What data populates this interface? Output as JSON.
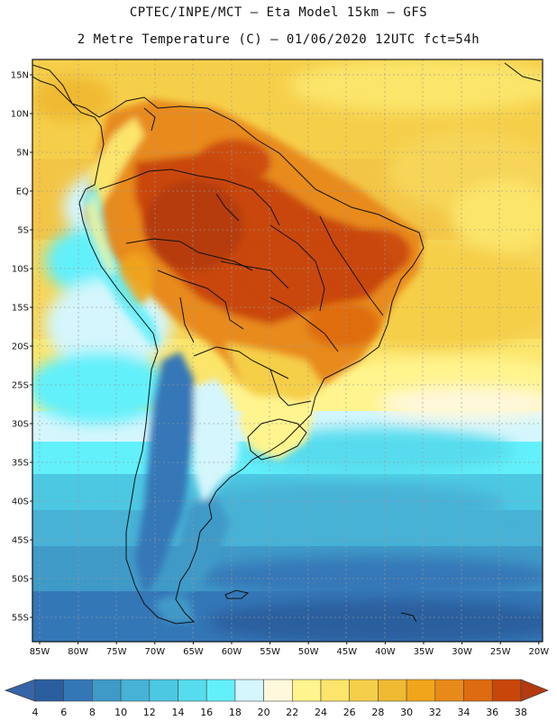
{
  "header": {
    "line1": "CPTEC/INPE/MCT –  Eta Model 15km – GFS",
    "line2": "2 Metre Temperature (C) – 01/06/2020 12UTC fct=54h"
  },
  "axes": {
    "lat_labels": [
      "15N",
      "10N",
      "5N",
      "EQ",
      "5S",
      "10S",
      "15S",
      "20S",
      "25S",
      "30S",
      "35S",
      "40S",
      "45S",
      "50S",
      "55S"
    ],
    "lon_labels": [
      "85W",
      "80W",
      "75W",
      "70W",
      "65W",
      "60W",
      "55W",
      "50W",
      "45W",
      "40W",
      "35W",
      "30W",
      "25W",
      "20W"
    ]
  },
  "colorbar": {
    "ticks": [
      "4",
      "6",
      "8",
      "10",
      "12",
      "14",
      "16",
      "18",
      "20",
      "22",
      "24",
      "26",
      "28",
      "30",
      "32",
      "34",
      "36",
      "38"
    ],
    "colors": [
      "#2a5e9e",
      "#3477b7",
      "#3f9ac8",
      "#47b2d6",
      "#4cc8e3",
      "#56dcee",
      "#62f0fb",
      "#d4f6fc",
      "#fff8dc",
      "#fff48e",
      "#fbe56a",
      "#f6cf4a",
      "#efba32",
      "#f0a51a",
      "#e88a1a",
      "#df6b10",
      "#c9460a"
    ],
    "low_color": "#3564a8",
    "high_color": "#b43a10"
  },
  "map": {
    "region": "South America",
    "variable": "2 Metre Temperature"
  }
}
